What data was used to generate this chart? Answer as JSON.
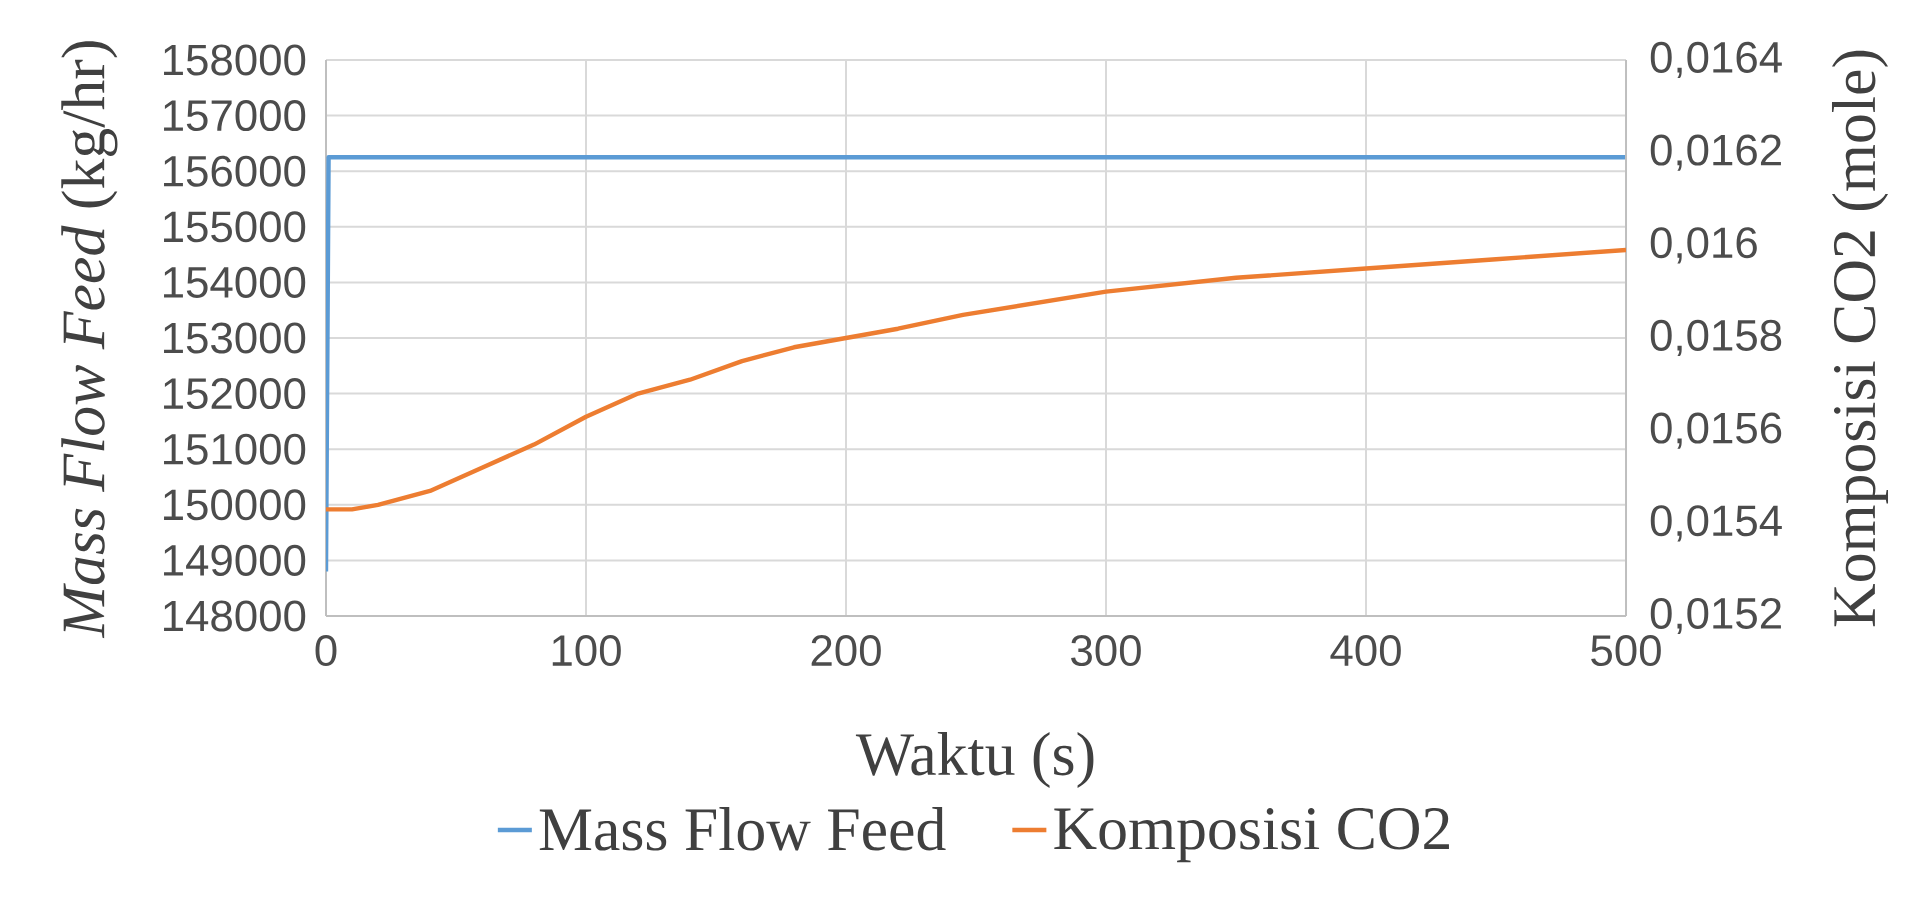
{
  "chart_data": {
    "type": "line",
    "xlabel": "Waktu (s)",
    "ylabel": "*Mass Flow Feed* (kg/hr)",
    "y2label": "Komposisi CO2 (mole)",
    "xlim": [
      0,
      500
    ],
    "xticks": [
      0,
      100,
      200,
      300,
      400,
      500
    ],
    "ylim": [
      148000,
      158000
    ],
    "yticks": [
      148000,
      149000,
      150000,
      151000,
      152000,
      153000,
      154000,
      155000,
      156000,
      157000,
      158000
    ],
    "y2lim": [
      0.0152,
      0.0164
    ],
    "y2ticks": [
      {
        "value": 0.0152,
        "label": "0,0152"
      },
      {
        "value": 0.0154,
        "label": "0,0154"
      },
      {
        "value": 0.0156,
        "label": "0,0156"
      },
      {
        "value": 0.0158,
        "label": "0,0158"
      },
      {
        "value": 0.016,
        "label": "0,016"
      },
      {
        "value": 0.0162,
        "label": "0,0162"
      },
      {
        "value": 0.0164,
        "label": "0,0164"
      }
    ],
    "grid": true,
    "legend": "bottom",
    "marker": "none",
    "line_style": "solid",
    "series": [
      {
        "name": "Mass Flow Feed",
        "color": "#5b9bd5",
        "x": [
          0,
          1,
          500
        ],
        "values": [
          148800,
          156250,
          156250
        ]
      },
      {
        "name": "Komposisi CO2",
        "color": "#ed7d31",
        "axis": "y2",
        "x": [
          0,
          10,
          20,
          40,
          60,
          80,
          100,
          120,
          140,
          160,
          180,
          200,
          220,
          245,
          300,
          350,
          400,
          450,
          500
        ],
        "values": [
          0.01543,
          0.01543,
          0.01544,
          0.01547,
          0.01552,
          0.01557,
          0.01563,
          0.01568,
          0.01571,
          0.01575,
          0.01578,
          0.0158,
          0.01582,
          0.01585,
          0.0159,
          0.01593,
          0.01595,
          0.01597,
          0.01599
        ]
      }
    ]
  }
}
